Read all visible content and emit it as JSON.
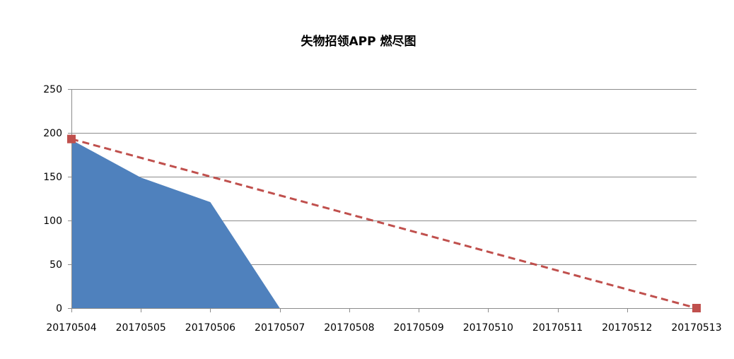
{
  "chart_data": {
    "type": "area",
    "title": "失物招领APP 燃尽图",
    "xlabel": "",
    "ylabel": "",
    "categories": [
      "20170504",
      "20170505",
      "20170506",
      "20170507",
      "20170508",
      "20170509",
      "20170510",
      "20170511",
      "20170512",
      "20170513"
    ],
    "ylim": [
      0,
      250
    ],
    "yticks": [
      0,
      50,
      100,
      150,
      200,
      250
    ],
    "grid": true,
    "legend": "none",
    "series": [
      {
        "type": "area",
        "color": "#4F81BD",
        "values": [
          192,
          149,
          121,
          0,
          0,
          0,
          0,
          0,
          0,
          0
        ]
      },
      {
        "type": "line",
        "style": "dashed",
        "marker": "square",
        "color": "#C0504D",
        "x": [
          "20170504",
          "20170513"
        ],
        "values": [
          193,
          0
        ]
      }
    ]
  }
}
